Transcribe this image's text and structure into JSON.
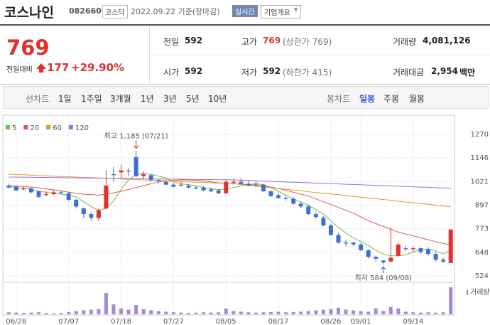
{
  "header": {
    "name": "코스나인",
    "code": "082660",
    "market": "코스닥",
    "date": "2022.09.22 기준(장마감)",
    "realtime": "실시간",
    "overview": "기업개요"
  },
  "quote": {
    "price": "769",
    "change_label": "전일대비",
    "change": "177",
    "change_rate": "+29.90%"
  },
  "stats": [
    {
      "label": "전일",
      "value": "592"
    },
    {
      "label": "고가",
      "value": "769",
      "note": "(상한가 769)"
    },
    {
      "label": "거래량",
      "value": "4,081,126"
    },
    {
      "label": "시가",
      "value": "592"
    },
    {
      "label": "저가",
      "value": "592",
      "note": "(하한가 415)"
    },
    {
      "label": "거래대금",
      "value": "2,954",
      "unit": "백만"
    }
  ],
  "tabs": {
    "line": [
      "선차트",
      "1일",
      "1주일",
      "3개월",
      "1년",
      "3년",
      "5년",
      "10년"
    ],
    "candle": [
      "봉차트",
      "일봉",
      "주봉",
      "월봉"
    ]
  },
  "chart_data": {
    "type": "candlestick",
    "categories": [
      null,
      "06/28",
      null,
      null,
      null,
      null,
      null,
      null,
      "07/07",
      null,
      null,
      null,
      null,
      null,
      null,
      "07/18",
      null,
      null,
      null,
      null,
      null,
      null,
      "07/27",
      null,
      null,
      null,
      null,
      null,
      null,
      "08/05",
      null,
      null,
      null,
      null,
      null,
      null,
      "08/17",
      null,
      null,
      null,
      null,
      null,
      null,
      "08/26",
      null,
      null,
      null,
      "09/01",
      null,
      null,
      null,
      null,
      null,
      null,
      "09/14",
      null,
      null,
      null,
      null,
      null
    ],
    "open": [
      1000,
      995,
      980,
      985,
      970,
      950,
      955,
      965,
      960,
      925,
      880,
      850,
      830,
      880,
      1060,
      1070,
      1080,
      1150,
      1050,
      1055,
      1030,
      1020,
      1005,
      1000,
      1000,
      990,
      990,
      980,
      975,
      960,
      1015,
      1020,
      1010,
      1010,
      1005,
      970,
      950,
      935,
      930,
      905,
      890,
      850,
      830,
      790,
      740,
      700,
      700,
      690,
      660,
      625,
      605,
      600,
      630,
      670,
      665,
      670,
      665,
      640,
      610,
      592
    ],
    "high": [
      1010,
      1000,
      995,
      990,
      975,
      970,
      975,
      975,
      965,
      930,
      885,
      860,
      880,
      1080,
      1100,
      1110,
      1095,
      1185,
      1075,
      1060,
      1040,
      1030,
      1015,
      1020,
      1010,
      1000,
      1000,
      990,
      985,
      1030,
      1035,
      1040,
      1030,
      1020,
      1010,
      975,
      960,
      950,
      940,
      915,
      900,
      860,
      840,
      800,
      750,
      715,
      705,
      700,
      665,
      630,
      610,
      780,
      700,
      680,
      680,
      675,
      675,
      650,
      620,
      769
    ],
    "low": [
      985,
      970,
      975,
      960,
      935,
      945,
      950,
      955,
      920,
      880,
      830,
      815,
      815,
      875,
      1020,
      1040,
      1050,
      1045,
      1035,
      1020,
      1010,
      1000,
      990,
      995,
      985,
      980,
      970,
      965,
      955,
      955,
      1005,
      1005,
      995,
      990,
      965,
      940,
      930,
      920,
      900,
      880,
      845,
      825,
      785,
      735,
      695,
      680,
      680,
      655,
      615,
      600,
      584,
      595,
      625,
      655,
      650,
      640,
      630,
      600,
      592,
      592
    ],
    "close": [
      990,
      975,
      985,
      965,
      940,
      955,
      965,
      960,
      925,
      890,
      850,
      830,
      870,
      1000,
      1055,
      1080,
      1075,
      1050,
      1060,
      1030,
      1025,
      1005,
      995,
      1005,
      990,
      985,
      975,
      970,
      960,
      1020,
      1020,
      1010,
      1000,
      1005,
      970,
      945,
      935,
      930,
      905,
      890,
      850,
      835,
      790,
      740,
      700,
      695,
      690,
      660,
      625,
      615,
      595,
      620,
      690,
      665,
      670,
      650,
      640,
      610,
      600,
      769
    ],
    "up_color": "#e0312f",
    "down_color": "#3d6fd6",
    "series": [
      {
        "name": "5",
        "color": "#6cbf4a",
        "values": [
          995,
          990,
          985,
          982,
          970,
          965,
          960,
          955,
          950,
          940,
          915,
          890,
          870,
          880,
          920,
          980,
          1030,
          1060,
          1065,
          1060,
          1050,
          1040,
          1020,
          1010,
          1005,
          1000,
          990,
          985,
          978,
          982,
          990,
          998,
          1005,
          1010,
          1005,
          990,
          970,
          950,
          930,
          915,
          895,
          875,
          850,
          815,
          780,
          750,
          725,
          705,
          685,
          660,
          640,
          630,
          630,
          635,
          650,
          665,
          665,
          655,
          640,
          660
        ]
      },
      {
        "name": "20",
        "color": "#e05a55",
        "values": [
          1000,
          998,
          995,
          992,
          988,
          983,
          978,
          972,
          966,
          960,
          955,
          952,
          950,
          955,
          962,
          970,
          980,
          990,
          1000,
          1010,
          1020,
          1025,
          1028,
          1030,
          1030,
          1028,
          1025,
          1020,
          1015,
          1012,
          1010,
          1008,
          1005,
          1002,
          998,
          992,
          985,
          975,
          965,
          955,
          945,
          930,
          915,
          900,
          885,
          870,
          855,
          835,
          815,
          800,
          785,
          770,
          755,
          745,
          735,
          725,
          715,
          705,
          695,
          688
        ]
      },
      {
        "name": "60",
        "color": "#e6952f",
        "values": [
          1060,
          1058,
          1057,
          1055,
          1053,
          1052,
          1050,
          1048,
          1047,
          1045,
          1043,
          1042,
          1040,
          1038,
          1037,
          1035,
          1033,
          1032,
          1030,
          1028,
          1027,
          1025,
          1023,
          1022,
          1020,
          1018,
          1017,
          1015,
          1013,
          1012,
          1010,
          1006,
          1002,
          998,
          993,
          989,
          985,
          981,
          977,
          973,
          968,
          964,
          960,
          956,
          952,
          948,
          943,
          939,
          935,
          931,
          927,
          923,
          918,
          914,
          910,
          906,
          902,
          898,
          893,
          889
        ]
      },
      {
        "name": "120",
        "color": "#9b70cf",
        "values": [
          1045,
          1045,
          1044,
          1044,
          1043,
          1043,
          1042,
          1042,
          1041,
          1041,
          1040,
          1040,
          1039,
          1039,
          1038,
          1038,
          1037,
          1037,
          1036,
          1036,
          1035,
          1035,
          1034,
          1034,
          1033,
          1033,
          1032,
          1032,
          1031,
          1031,
          1030,
          1028,
          1027,
          1025,
          1024,
          1022,
          1021,
          1019,
          1018,
          1016,
          1015,
          1013,
          1012,
          1010,
          1009,
          1007,
          1006,
          1004,
          1003,
          1001,
          1000,
          998,
          997,
          995,
          994,
          992,
          991,
          989,
          988,
          986
        ]
      }
    ],
    "volume": [
      300000,
      250000,
      200000,
      250000,
      300000,
      200000,
      150000,
      200000,
      350000,
      500000,
      600000,
      700000,
      800000,
      3200000,
      1500000,
      900000,
      700000,
      1400000,
      800000,
      600000,
      500000,
      400000,
      300000,
      250000,
      200000,
      250000,
      300000,
      250000,
      300000,
      900000,
      500000,
      400000,
      300000,
      250000,
      300000,
      350000,
      400000,
      300000,
      350000,
      400000,
      500000,
      600000,
      700000,
      800000,
      1000000,
      700000,
      600000,
      500000,
      400000,
      900000,
      500000,
      1100000,
      900000,
      400000,
      300000,
      250000,
      300000,
      250000,
      300000,
      4081126
    ],
    "volume_color": "#a58bd0",
    "volume_label": "거래량",
    "ylim": [
      498,
      1341
    ],
    "yticks": [
      1270,
      1146,
      1021,
      897,
      773,
      648,
      524
    ],
    "grid": true,
    "annotations": [
      {
        "text": "최고 1,185 (07/21)",
        "index": 17,
        "at": "high"
      },
      {
        "text": "최저 584 (09/08)",
        "index": 50,
        "at": "low"
      }
    ]
  }
}
